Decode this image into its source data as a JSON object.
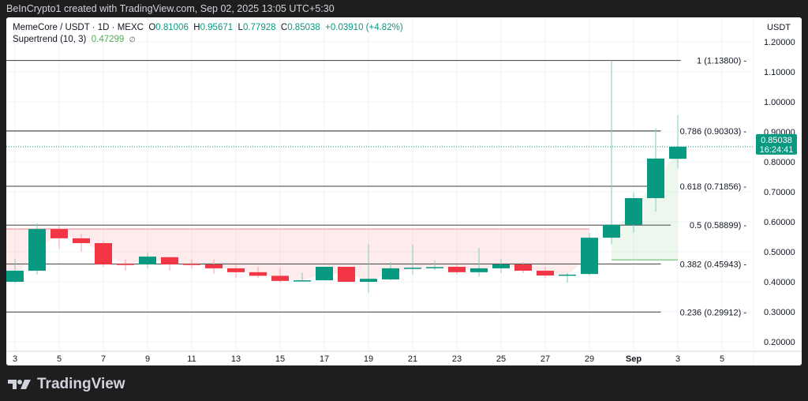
{
  "header": {
    "attribution": "BeInCrypto1 created with TradingView.com, Sep 02, 2025 13:05 UTC+5:30"
  },
  "legend": {
    "symbol": "MemeCore / USDT · 1D · MEXC",
    "open_label": "O",
    "open": "0.81006",
    "high_label": "H",
    "high": "0.95671",
    "low_label": "L",
    "low": "0.77928",
    "close_label": "C",
    "close": "0.85038",
    "change": "+0.03910 (+4.82%)",
    "indicator": "Supertrend (10, 3)",
    "indicator_value": "0.47299",
    "indicator_icon": "∅"
  },
  "price_axis": {
    "unit": "USDT"
  },
  "last_price": {
    "value": "0.85038",
    "countdown": "16:24:41"
  },
  "footer": {
    "brand": "TradingView"
  },
  "colors": {
    "up": "#089981",
    "down": "#f23645",
    "supertrend_up": "#4caf50",
    "supertrend_down": "#f23645",
    "fib_line": "#555555"
  },
  "chart_data": {
    "type": "candlestick",
    "title": "MemeCore / USDT · 1D · MEXC",
    "ylim": [
      0.17,
      1.26
    ],
    "y_ticks": [
      "1.20000",
      "1.10000",
      "1.00000",
      "0.90000",
      "0.80000",
      "0.70000",
      "0.60000",
      "0.50000",
      "0.40000",
      "0.30000",
      "0.20000"
    ],
    "x_ticks": [
      "3",
      "5",
      "7",
      "9",
      "11",
      "13",
      "15",
      "17",
      "19",
      "21",
      "23",
      "25",
      "27",
      "29",
      "Sep",
      "3",
      "5"
    ],
    "grid": true,
    "dates": [
      "Aug 3",
      "Aug 4",
      "Aug 5",
      "Aug 6",
      "Aug 7",
      "Aug 8",
      "Aug 9",
      "Aug 10",
      "Aug 11",
      "Aug 12",
      "Aug 13",
      "Aug 14",
      "Aug 15",
      "Aug 16",
      "Aug 17",
      "Aug 18",
      "Aug 19",
      "Aug 20",
      "Aug 21",
      "Aug 22",
      "Aug 23",
      "Aug 24",
      "Aug 25",
      "Aug 26",
      "Aug 27",
      "Aug 28",
      "Aug 29",
      "Aug 30",
      "Aug 31",
      "Sep 1",
      "Sep 2"
    ],
    "ohlc": [
      [
        0.4,
        0.476,
        0.395,
        0.437
      ],
      [
        0.437,
        0.595,
        0.425,
        0.576
      ],
      [
        0.576,
        0.587,
        0.51,
        0.545
      ],
      [
        0.545,
        0.56,
        0.5,
        0.529
      ],
      [
        0.529,
        0.537,
        0.45,
        0.458
      ],
      [
        0.46,
        0.474,
        0.437,
        0.458
      ],
      [
        0.458,
        0.497,
        0.445,
        0.484
      ],
      [
        0.482,
        0.482,
        0.437,
        0.458
      ],
      [
        0.46,
        0.474,
        0.445,
        0.457
      ],
      [
        0.458,
        0.474,
        0.426,
        0.445
      ],
      [
        0.445,
        0.458,
        0.413,
        0.432
      ],
      [
        0.432,
        0.45,
        0.413,
        0.42
      ],
      [
        0.42,
        0.445,
        0.398,
        0.403
      ],
      [
        0.403,
        0.43,
        0.403,
        0.405
      ],
      [
        0.405,
        0.45,
        0.405,
        0.45
      ],
      [
        0.45,
        0.45,
        0.4,
        0.4
      ],
      [
        0.4,
        0.526,
        0.363,
        0.41
      ],
      [
        0.408,
        0.466,
        0.405,
        0.445
      ],
      [
        0.444,
        0.524,
        0.424,
        0.447
      ],
      [
        0.446,
        0.471,
        0.439,
        0.449
      ],
      [
        0.45,
        0.458,
        0.424,
        0.432
      ],
      [
        0.432,
        0.513,
        0.418,
        0.445
      ],
      [
        0.445,
        0.476,
        0.429,
        0.458
      ],
      [
        0.458,
        0.466,
        0.429,
        0.437
      ],
      [
        0.437,
        0.45,
        0.413,
        0.421
      ],
      [
        0.42,
        0.429,
        0.397,
        0.424
      ],
      [
        0.426,
        0.563,
        0.42,
        0.547
      ],
      [
        0.547,
        1.138,
        0.526,
        0.59
      ],
      [
        0.59,
        0.697,
        0.563,
        0.679
      ],
      [
        0.679,
        0.911,
        0.634,
        0.811
      ],
      [
        0.81006,
        0.95671,
        0.77928,
        0.85038
      ]
    ],
    "supertrend": {
      "down_value": 0.576,
      "down_range": [
        "Aug 3",
        "Aug 29"
      ],
      "up_value": 0.47299,
      "up_range": [
        "Aug 30",
        "Sep 2"
      ]
    },
    "fib_levels": [
      {
        "label": "1 (1.13800)",
        "value": 1.138
      },
      {
        "label": "0.786 (0.90303)",
        "value": 0.90303
      },
      {
        "label": "0.618 (0.71856)",
        "value": 0.71856
      },
      {
        "label": "0.5 (0.58899)",
        "value": 0.58899
      },
      {
        "label": "0.382 (0.45943)",
        "value": 0.45943
      },
      {
        "label": "0.236 (0.29912)",
        "value": 0.29912
      }
    ]
  }
}
